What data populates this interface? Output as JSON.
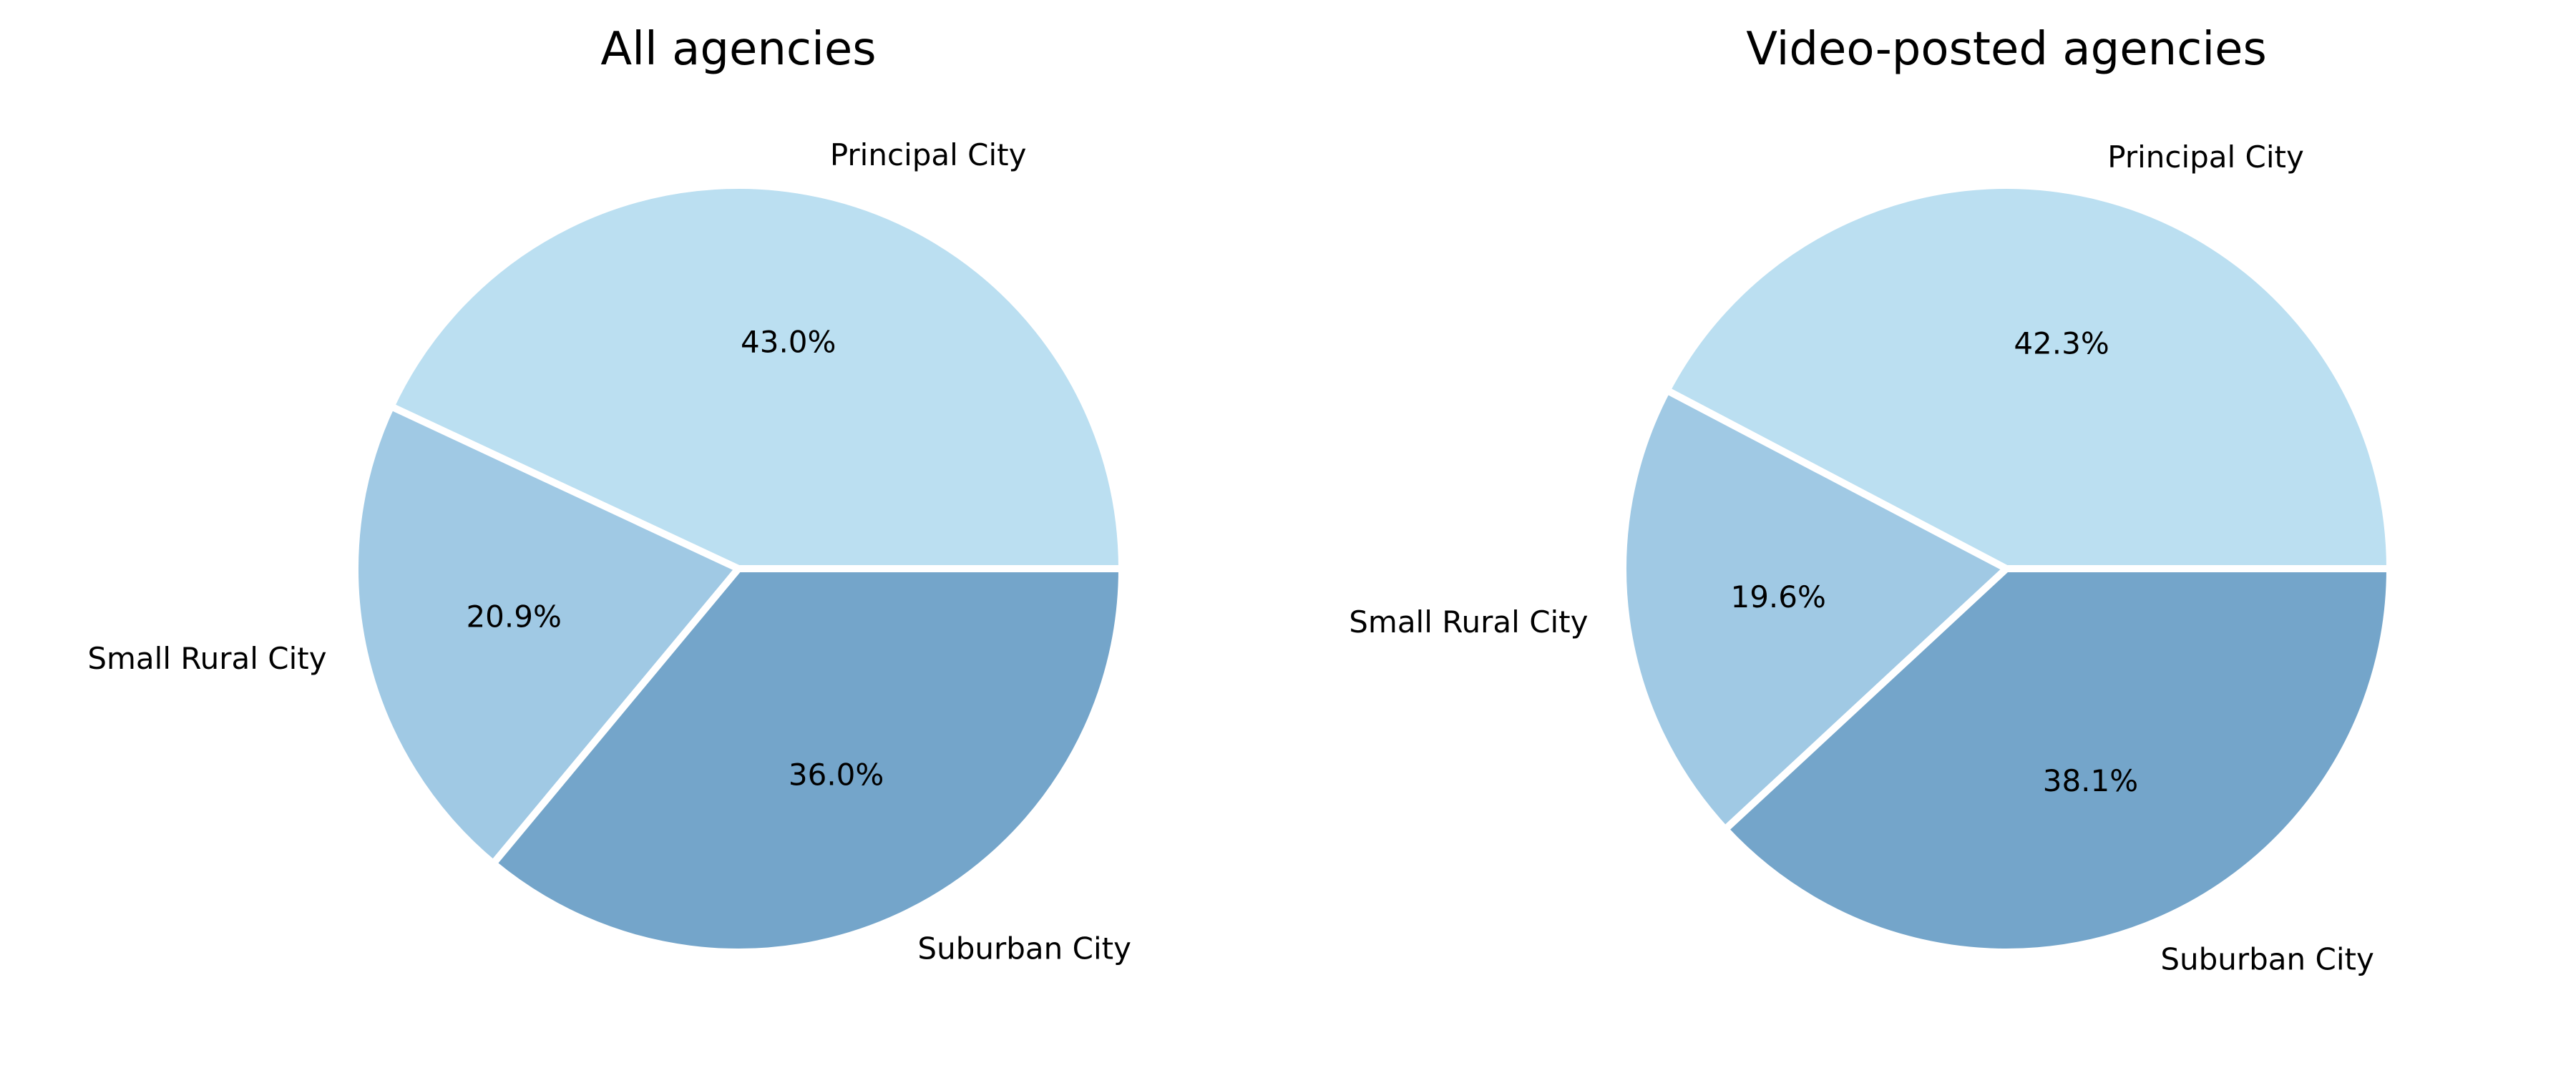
{
  "chart_data": [
    {
      "type": "pie",
      "title": "All agencies",
      "slices": [
        {
          "label": "Principal City",
          "value": 43.0,
          "pct_label": "43.0%",
          "color": "#bbdff1"
        },
        {
          "label": "Small Rural City",
          "value": 20.9,
          "pct_label": "20.9%",
          "color": "#a0c9e4"
        },
        {
          "label": "Suburban City",
          "value": 36.0,
          "pct_label": "36.0%",
          "color": "#74a5ca"
        }
      ],
      "start_angle_deg": 0,
      "direction": "counterclockwise",
      "slice_edge_color": "#ffffff"
    },
    {
      "type": "pie",
      "title": "Video-posted agencies",
      "slices": [
        {
          "label": "Principal City",
          "value": 42.3,
          "pct_label": "42.3%",
          "color": "#bbdff1"
        },
        {
          "label": "Small Rural City",
          "value": 19.6,
          "pct_label": "19.6%",
          "color": "#a0c9e4"
        },
        {
          "label": "Suburban City",
          "value": 38.1,
          "pct_label": "38.1%",
          "color": "#74a5ca"
        }
      ],
      "start_angle_deg": 0,
      "direction": "counterclockwise",
      "slice_edge_color": "#ffffff"
    }
  ]
}
